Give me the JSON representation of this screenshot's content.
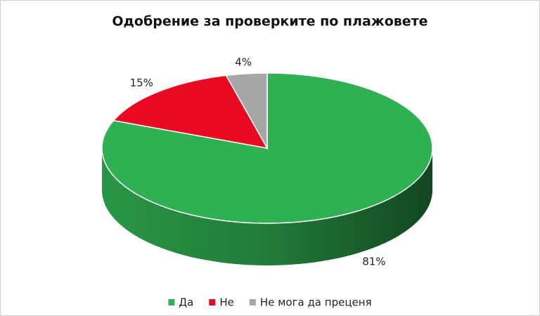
{
  "chart_data": {
    "type": "pie3d",
    "title": "Одобрение за проверките по плажовете",
    "categories": [
      "Да",
      "Не",
      "Не мога да преценя"
    ],
    "values": [
      81,
      15,
      4
    ],
    "value_labels": [
      "81%",
      "15%",
      "4%"
    ],
    "colors": [
      "#2fb052",
      "#ea0a22",
      "#a6a6a6"
    ],
    "legend": "bottom"
  }
}
